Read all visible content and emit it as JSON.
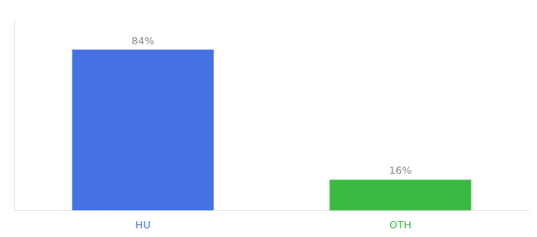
{
  "chart_data": {
    "type": "bar",
    "categories": [
      "HU",
      "OTH"
    ],
    "values": [
      84,
      16
    ],
    "colors": [
      "#4472E3",
      "#3CB943"
    ],
    "value_labels": [
      "84%",
      "16%"
    ],
    "data_labels": true,
    "ylim": [
      0,
      100
    ],
    "tick_labels": "x",
    "grid": false
  }
}
